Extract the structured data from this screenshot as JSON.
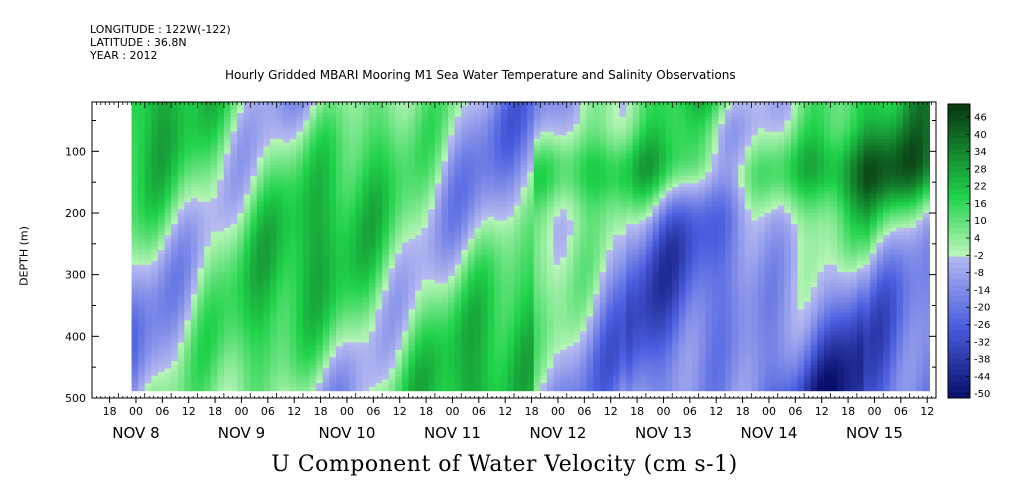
{
  "header": {
    "longitude": "LONGITUDE : 122W(-122)",
    "latitude": "LATITUDE : 36.8N",
    "year": "YEAR : 2012"
  },
  "title": "Hourly Gridded MBARI Mooring M1 Sea Water Temperature and Salinity Observations",
  "bottom_title": "U Component of Water Velocity (cm s-1)",
  "chart_data": {
    "type": "heatmap",
    "title": "Hourly Gridded MBARI Mooring M1 Sea Water Temperature and Salinity Observations",
    "xlabel": "",
    "ylabel": "DEPTH (m)",
    "variable": "U Component of Water Velocity (cm s-1)",
    "y_axis": {
      "reversed": true,
      "range": [
        20,
        500
      ],
      "ticks": [
        100,
        200,
        300,
        400,
        500
      ]
    },
    "x_axis": {
      "range_hours": [
        0,
        192
      ],
      "start": "2012-11-07T14:00",
      "hour_ticks": [
        "18",
        "00",
        "06",
        "12",
        "18",
        "00",
        "06",
        "12",
        "18",
        "00",
        "06",
        "12",
        "18",
        "00",
        "06",
        "12",
        "18",
        "00",
        "06",
        "12",
        "18",
        "00",
        "06",
        "12",
        "18",
        "00",
        "06",
        "12",
        "18",
        "00",
        "06",
        "12"
      ],
      "day_labels": [
        "NOV  8",
        "NOV  9",
        "NOV 10",
        "NOV 11",
        "NOV 12",
        "NOV 13",
        "NOV 14",
        "NOV 15"
      ]
    },
    "colorbar": {
      "labels": [
        "46",
        "40",
        "34",
        "28",
        "22",
        "16",
        "10",
        "4",
        "-2",
        "-8",
        "-14",
        "-20",
        "-26",
        "-32",
        "-38",
        "-44",
        "-50"
      ],
      "min": -50,
      "max": 52
    },
    "colors": {
      "positive_dark": "#0a3d14",
      "positive_mid": "#1fd24a",
      "positive_light": "#b8f5b8",
      "negative_light": "#b8bcf0",
      "negative_mid": "#4a5ee0",
      "negative_dark": "#080f6a"
    },
    "description": "Alternating bands of positive (green) and negative (blue/purple) U velocity with depth and time; strongest positives near 100-150 m around Nov 12-14, strongest negatives at depth near Nov 13-14."
  }
}
